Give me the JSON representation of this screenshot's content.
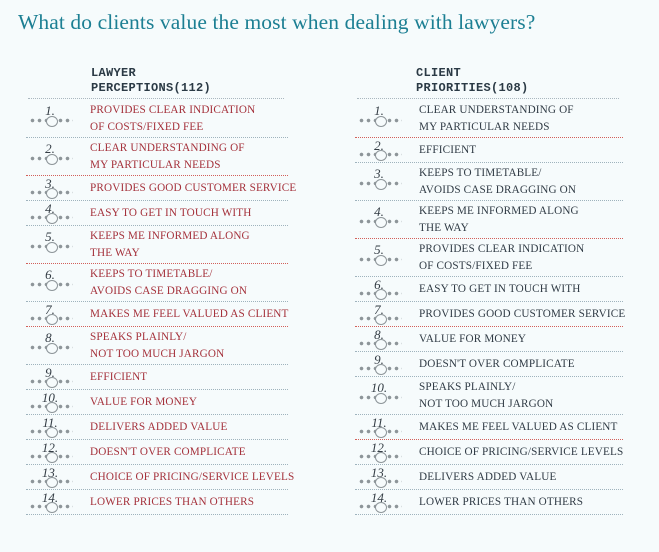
{
  "title": "What do clients value the most when dealing with lawyers?",
  "columns": {
    "left": {
      "heading_line1": "LAWYER",
      "heading_line2": "PERCEPTIONS(112)"
    },
    "right": {
      "heading_line1": "CLIENT",
      "heading_line2": "PRIORITIES(108)"
    }
  },
  "colors": {
    "title": "#1c7f93",
    "lawyer_text": "#a4303a",
    "client_text": "#2f3a44",
    "divider_red": "#d2605a"
  },
  "lawyer_perceptions": [
    {
      "rank": "1.",
      "lines": [
        "PROVIDES CLEAR INDICATION",
        "OF COSTS/FIXED FEE"
      ]
    },
    {
      "rank": "2.",
      "lines": [
        "CLEAR UNDERSTANDING OF",
        "MY PARTICULAR NEEDS"
      ]
    },
    {
      "rank": "3.",
      "lines": [
        "PROVIDES GOOD CUSTOMER SERVICE"
      ]
    },
    {
      "rank": "4.",
      "lines": [
        "EASY TO GET IN TOUCH WITH"
      ]
    },
    {
      "rank": "5.",
      "lines": [
        "KEEPS ME INFORMED ALONG",
        "THE WAY"
      ]
    },
    {
      "rank": "6.",
      "lines": [
        "KEEPS TO TIMETABLE/",
        "AVOIDS CASE DRAGGING ON"
      ]
    },
    {
      "rank": "7.",
      "lines": [
        "MAKES ME FEEL VALUED AS CLIENT"
      ]
    },
    {
      "rank": "8.",
      "lines": [
        "SPEAKS PLAINLY/",
        "NOT TOO MUCH JARGON"
      ]
    },
    {
      "rank": "9.",
      "lines": [
        "EFFICIENT"
      ]
    },
    {
      "rank": "10.",
      "lines": [
        "VALUE FOR MONEY"
      ]
    },
    {
      "rank": "11.",
      "lines": [
        "DELIVERS ADDED VALUE"
      ]
    },
    {
      "rank": "12.",
      "lines": [
        "DOESN'T OVER COMPLICATE"
      ]
    },
    {
      "rank": "13.",
      "lines": [
        "CHOICE OF PRICING/SERVICE LEVELS"
      ]
    },
    {
      "rank": "14.",
      "lines": [
        "LOWER PRICES THAN OTHERS"
      ]
    }
  ],
  "client_priorities": [
    {
      "rank": "1.",
      "lines": [
        "CLEAR UNDERSTANDING OF",
        "MY PARTICULAR NEEDS"
      ]
    },
    {
      "rank": "2.",
      "lines": [
        "EFFICIENT"
      ]
    },
    {
      "rank": "3.",
      "lines": [
        "KEEPS TO TIMETABLE/",
        "AVOIDS CASE DRAGGING ON"
      ]
    },
    {
      "rank": "4.",
      "lines": [
        "KEEPS ME INFORMED ALONG",
        "THE WAY"
      ]
    },
    {
      "rank": "5.",
      "lines": [
        "PROVIDES CLEAR INDICATION",
        "OF COSTS/FIXED FEE"
      ]
    },
    {
      "rank": "6.",
      "lines": [
        "EASY TO GET IN TOUCH WITH"
      ]
    },
    {
      "rank": "7.",
      "lines": [
        "PROVIDES GOOD CUSTOMER SERVICE"
      ]
    },
    {
      "rank": "8.",
      "lines": [
        "VALUE FOR MONEY"
      ]
    },
    {
      "rank": "9.",
      "lines": [
        "DOESN'T OVER COMPLICATE"
      ]
    },
    {
      "rank": "10.",
      "lines": [
        "SPEAKS PLAINLY/",
        "NOT TOO MUCH JARGON"
      ]
    },
    {
      "rank": "11.",
      "lines": [
        "MAKES ME FEEL VALUED AS CLIENT"
      ]
    },
    {
      "rank": "12.",
      "lines": [
        "CHOICE OF PRICING/SERVICE LEVELS"
      ]
    },
    {
      "rank": "13.",
      "lines": [
        "DELIVERS ADDED VALUE"
      ]
    },
    {
      "rank": "14.",
      "lines": [
        "LOWER PRICES THAN OTHERS"
      ]
    }
  ]
}
